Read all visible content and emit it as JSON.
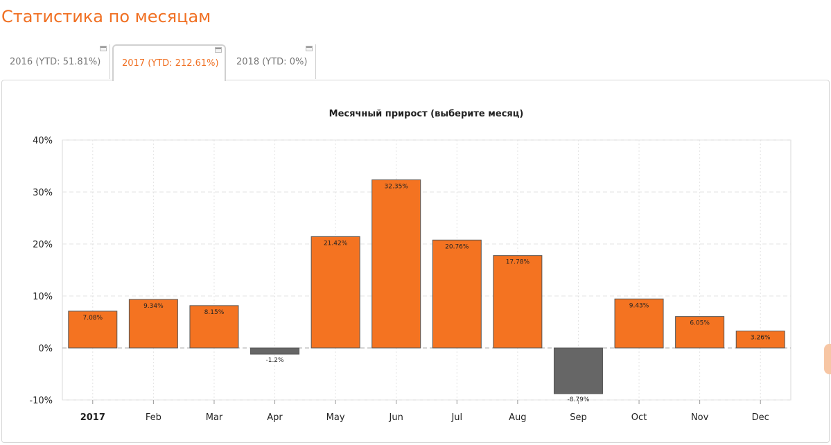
{
  "header": {
    "title": "Статистика по месяцам"
  },
  "tabs": [
    {
      "label": "2016 (YTD: 51.81%)"
    },
    {
      "label": "2017 (YTD: 212.61%)",
      "active": true
    },
    {
      "label": "2018 (YTD: 0%)"
    }
  ],
  "colors": {
    "accent": "#f07023",
    "positive_bar": "#f47321",
    "negative_bar": "#666666",
    "bar_border": "#555555"
  },
  "chart_data": {
    "type": "bar",
    "title": "Месячный прирост (выберите месяц)",
    "categories": [
      "2017",
      "Feb",
      "Mar",
      "Apr",
      "May",
      "Jun",
      "Jul",
      "Aug",
      "Sep",
      "Oct",
      "Nov",
      "Dec"
    ],
    "values": [
      7.08,
      9.34,
      8.15,
      -1.2,
      21.42,
      32.35,
      20.76,
      17.78,
      -8.79,
      9.43,
      6.05,
      3.26
    ],
    "value_labels": [
      "7.08%",
      "9.34%",
      "8.15%",
      "-1.2%",
      "21.42%",
      "32.35%",
      "20.76%",
      "17.78%",
      "-8.79%",
      "9.43%",
      "6.05%",
      "3.26%"
    ],
    "ylim": [
      -10,
      40
    ],
    "yticks": [
      -10,
      0,
      10,
      20,
      30,
      40
    ],
    "ytick_labels": [
      "-10%",
      "0%",
      "10%",
      "20%",
      "30%",
      "40%"
    ],
    "grid": true,
    "xlabel": "",
    "ylabel": ""
  }
}
